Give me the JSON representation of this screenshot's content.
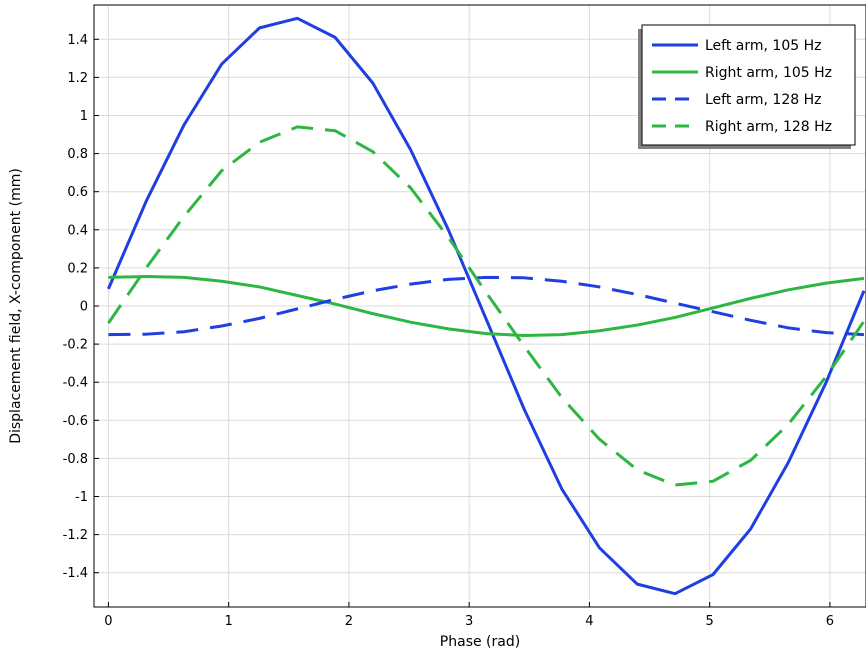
{
  "chart_data": {
    "type": "line",
    "title": "",
    "xlabel": "Phase (rad)",
    "ylabel": "Displacement field, X-component (mm)",
    "xlim": [
      -0.12,
      6.3
    ],
    "ylim": [
      -1.58,
      1.58
    ],
    "x_ticks": [
      0,
      1,
      2,
      3,
      4,
      5,
      6
    ],
    "x_tick_labels": [
      "0",
      "1",
      "2",
      "3",
      "4",
      "5",
      "6"
    ],
    "y_ticks": [
      1.4,
      1.2,
      1,
      0.8,
      0.6,
      0.4,
      0.2,
      0,
      -0.2,
      -0.4,
      -0.6,
      -0.8,
      -1,
      -1.2,
      -1.4
    ],
    "y_tick_labels": [
      "1.4",
      "1.2",
      "1",
      "0.8",
      "0.6",
      "0.4",
      "0.2",
      "0",
      "-0.2",
      "-0.4",
      "-0.6",
      "-0.8",
      "-1",
      "-1.2",
      "-1.4"
    ],
    "grid": true,
    "legend_position": "top-right",
    "x": [
      0,
      0.314,
      0.628,
      0.942,
      1.257,
      1.571,
      1.885,
      2.199,
      2.513,
      2.827,
      3.142,
      3.456,
      3.77,
      4.084,
      4.398,
      4.712,
      5.027,
      5.341,
      5.655,
      5.969,
      6.283
    ],
    "series": [
      {
        "name": "Left arm, 105 Hz",
        "color": "#1f3fe0",
        "dashed": false,
        "values": [
          0.09,
          0.55,
          0.95,
          1.27,
          1.46,
          1.51,
          1.41,
          1.17,
          0.82,
          0.4,
          -0.07,
          -0.54,
          -0.96,
          -1.27,
          -1.46,
          -1.51,
          -1.41,
          -1.17,
          -0.82,
          -0.4,
          0.08
        ]
      },
      {
        "name": "Right arm, 105 Hz",
        "color": "#2db642",
        "dashed": false,
        "values": [
          0.15,
          0.155,
          0.15,
          0.13,
          0.1,
          0.055,
          0.01,
          -0.04,
          -0.085,
          -0.12,
          -0.145,
          -0.155,
          -0.15,
          -0.13,
          -0.1,
          -0.06,
          -0.01,
          0.04,
          0.085,
          0.12,
          0.145
        ]
      },
      {
        "name": "Left arm, 128 Hz",
        "color": "#1f3fe0",
        "dashed": true,
        "values": [
          -0.15,
          -0.148,
          -0.135,
          -0.105,
          -0.065,
          -0.015,
          0.035,
          0.08,
          0.115,
          0.14,
          0.15,
          0.148,
          0.13,
          0.1,
          0.06,
          0.015,
          -0.03,
          -0.075,
          -0.115,
          -0.14,
          -0.15
        ]
      },
      {
        "name": "Right arm, 128 Hz",
        "color": "#2db642",
        "dashed": true,
        "values": [
          -0.09,
          0.2,
          0.47,
          0.71,
          0.86,
          0.94,
          0.92,
          0.81,
          0.62,
          0.36,
          0.07,
          -0.21,
          -0.48,
          -0.7,
          -0.86,
          -0.94,
          -0.92,
          -0.81,
          -0.62,
          -0.37,
          -0.08
        ]
      }
    ]
  }
}
